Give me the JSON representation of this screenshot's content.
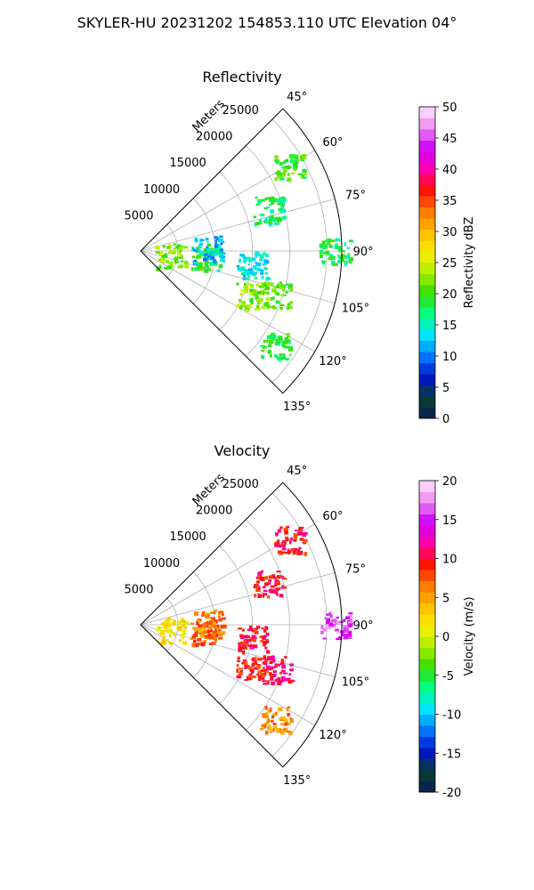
{
  "suptitle": "SKYLER-HU  20231202  154853.110 UTC Elevation 04°",
  "chart_data": [
    {
      "type": "ppi-sector",
      "title": "Reflectivity",
      "range_label": "Meters",
      "range_ticks": [
        5000,
        10000,
        15000,
        20000,
        25000
      ],
      "range_max": 27000,
      "azimuth_range_deg": [
        45,
        135
      ],
      "azimuth_ticks": [
        "45°",
        "60°",
        "75°",
        "90°",
        "105°",
        "120°",
        "135°"
      ],
      "grid": true,
      "colorbar": {
        "label": "Reflectivity dBZ",
        "min": 0,
        "max": 50,
        "ticks": [
          0,
          5,
          10,
          15,
          20,
          25,
          30,
          35,
          40,
          45,
          50
        ],
        "stops": [
          "#0b1c55",
          "#0a3f2e",
          "#0012cc",
          "#0077ff",
          "#00e5ff",
          "#00ff88",
          "#33dd00",
          "#aaee00",
          "#ffee00",
          "#ffbb00",
          "#ff7700",
          "#ff1100",
          "#ff00aa",
          "#cc00ff",
          "#ee88ee",
          "#ffe8ff"
        ]
      },
      "echoes": [
        {
          "az": 95,
          "r": 8500,
          "dbz": 19
        },
        {
          "az": 100,
          "r": 4000,
          "dbz": 22
        },
        {
          "az": 88,
          "r": 9000,
          "dbz": 12
        },
        {
          "az": 97,
          "r": 15000,
          "dbz": 14
        },
        {
          "az": 108,
          "r": 19000,
          "dbz": 20
        },
        {
          "az": 112,
          "r": 16000,
          "dbz": 22
        },
        {
          "az": 125,
          "r": 22000,
          "dbz": 19
        },
        {
          "az": 90,
          "r": 26000,
          "dbz": 18
        },
        {
          "az": 72,
          "r": 18000,
          "dbz": 17
        },
        {
          "az": 60,
          "r": 23000,
          "dbz": 20
        }
      ]
    },
    {
      "type": "ppi-sector",
      "title": "Velocity",
      "range_label": "Meters",
      "range_ticks": [
        5000,
        10000,
        15000,
        20000,
        25000
      ],
      "range_max": 27000,
      "azimuth_range_deg": [
        45,
        135
      ],
      "azimuth_ticks": [
        "45°",
        "60°",
        "75°",
        "90°",
        "105°",
        "120°",
        "135°"
      ],
      "grid": true,
      "colorbar": {
        "label": "Velocity (m/s)",
        "min": -20,
        "max": 20,
        "ticks": [
          -20,
          -15,
          -10,
          -5,
          0,
          5,
          10,
          15,
          20
        ],
        "stops": [
          "#0b1c55",
          "#0a3f2e",
          "#0012cc",
          "#0077ff",
          "#00e5ff",
          "#00ff88",
          "#33dd00",
          "#aaee00",
          "#ffee00",
          "#ffbb00",
          "#ff7700",
          "#ff1100",
          "#ff00aa",
          "#cc00ff",
          "#ee88ee",
          "#ffe8ff"
        ]
      },
      "echoes": [
        {
          "az": 95,
          "r": 8500,
          "vel": 8
        },
        {
          "az": 100,
          "r": 4000,
          "vel": 2
        },
        {
          "az": 88,
          "r": 9000,
          "vel": 6
        },
        {
          "az": 97,
          "r": 15000,
          "vel": 10
        },
        {
          "az": 108,
          "r": 19000,
          "vel": 11
        },
        {
          "az": 112,
          "r": 16000,
          "vel": 9
        },
        {
          "az": 125,
          "r": 22000,
          "vel": 6
        },
        {
          "az": 90,
          "r": 26000,
          "vel": 16
        },
        {
          "az": 72,
          "r": 18000,
          "vel": 10
        },
        {
          "az": 60,
          "r": 23000,
          "vel": 10
        }
      ]
    }
  ]
}
